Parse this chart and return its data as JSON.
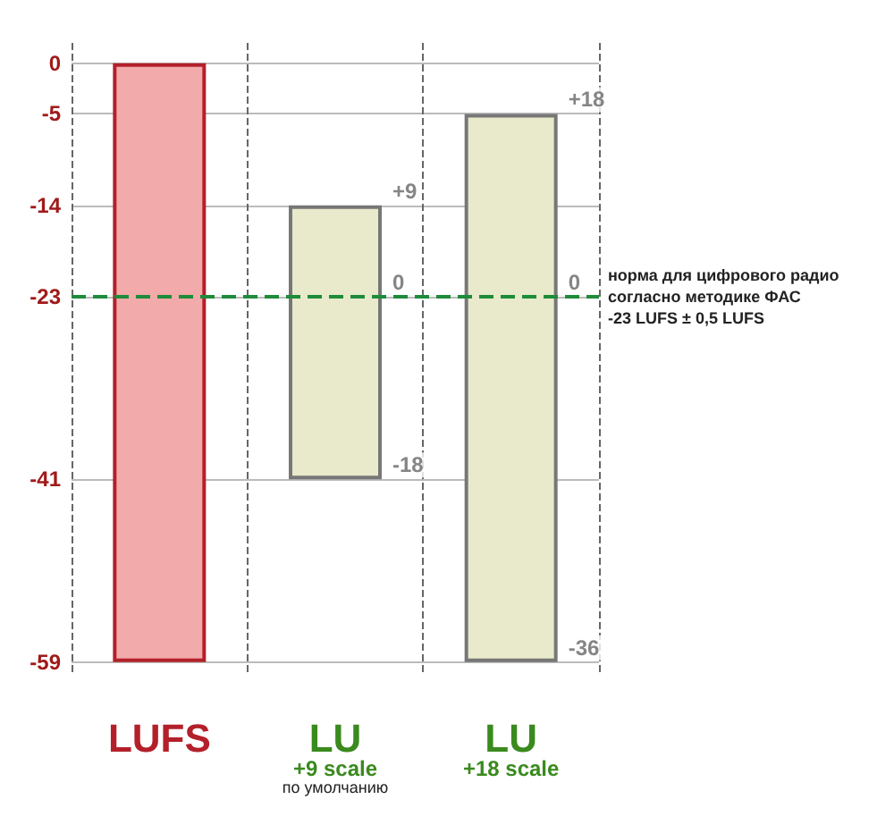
{
  "chart_data": {
    "type": "bar",
    "categories": [
      "LUFS",
      "LU\n+9 scale\nпо умолчанию",
      "LU\n+18 scale"
    ],
    "base": [
      -59,
      -41,
      -59
    ],
    "values": [
      59,
      27,
      54
    ],
    "colors": [
      "#f2aaaa",
      "#e8eacb",
      "#e8eacb"
    ],
    "ylim": [
      -60,
      2
    ],
    "yticks": [
      0,
      -5,
      -14,
      -23,
      -41,
      -59
    ],
    "grid": true,
    "ref_lines": [
      {
        "axis": "y",
        "value": -23,
        "label": "норма для цифрового радио\nсогласно методике ФАС\n-23 LUFS ± 0,5 LUFS",
        "color": "#1e8c3a",
        "line_style": "dashed"
      }
    ],
    "annotations": [
      {
        "text": "+9",
        "x": "LU\n+9 scale\nпо умолчанию",
        "y": -14
      },
      {
        "text": "0",
        "x": "LU\n+9 scale\nпо умолчанию",
        "y": -23
      },
      {
        "text": "-18",
        "x": "LU\n+9 scale\nпо умолчанию",
        "y": -41
      },
      {
        "text": "+18",
        "x": "LU\n+18 scale",
        "y": -5
      },
      {
        "text": "0",
        "x": "LU\n+18 scale",
        "y": -23
      },
      {
        "text": "-36",
        "x": "LU\n+18 scale",
        "y": -59
      }
    ]
  }
}
